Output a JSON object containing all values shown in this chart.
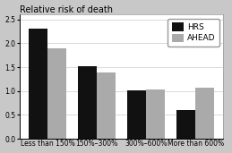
{
  "title": "Relative risk of death",
  "categories": [
    "Less than 150%",
    "150%–300%",
    "300%–600%",
    "More than 600%"
  ],
  "series": [
    {
      "label": "HRS",
      "color": "#111111",
      "values": [
        2.3,
        1.52,
        1.02,
        0.6
      ]
    },
    {
      "label": "AHEAD",
      "color": "#aaaaaa",
      "values": [
        1.9,
        1.38,
        1.03,
        1.06
      ]
    }
  ],
  "ylim": [
    0,
    2.6
  ],
  "yticks": [
    0,
    0.5,
    1.0,
    1.5,
    2.0,
    2.5
  ],
  "bar_width": 0.38,
  "fig_bg_color": "#c8c8c8",
  "plot_bg_color": "#ffffff",
  "legend_bg": "#ffffff",
  "title_fontsize": 7,
  "tick_fontsize": 5.5,
  "legend_fontsize": 6.5
}
